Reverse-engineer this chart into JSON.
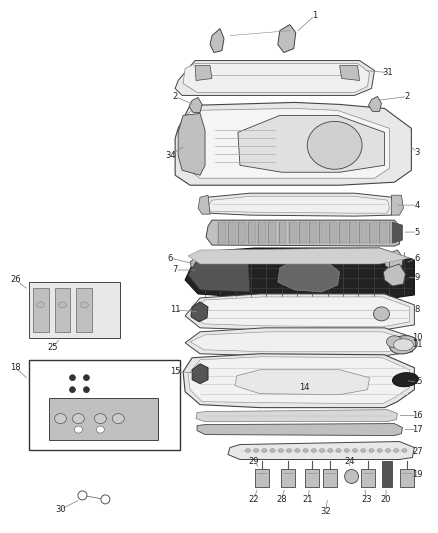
{
  "bg_color": "#ffffff",
  "fig_width": 4.38,
  "fig_height": 5.33,
  "dpi": 100,
  "label_fontsize": 6.0,
  "line_color": "#888888",
  "text_color": "#222222",
  "fc_light": "#e8e8e8",
  "fc_mid": "#c0c0c0",
  "fc_dark": "#555555",
  "fc_vdark": "#222222",
  "ec_normal": "#444444",
  "ec_light": "#888888"
}
